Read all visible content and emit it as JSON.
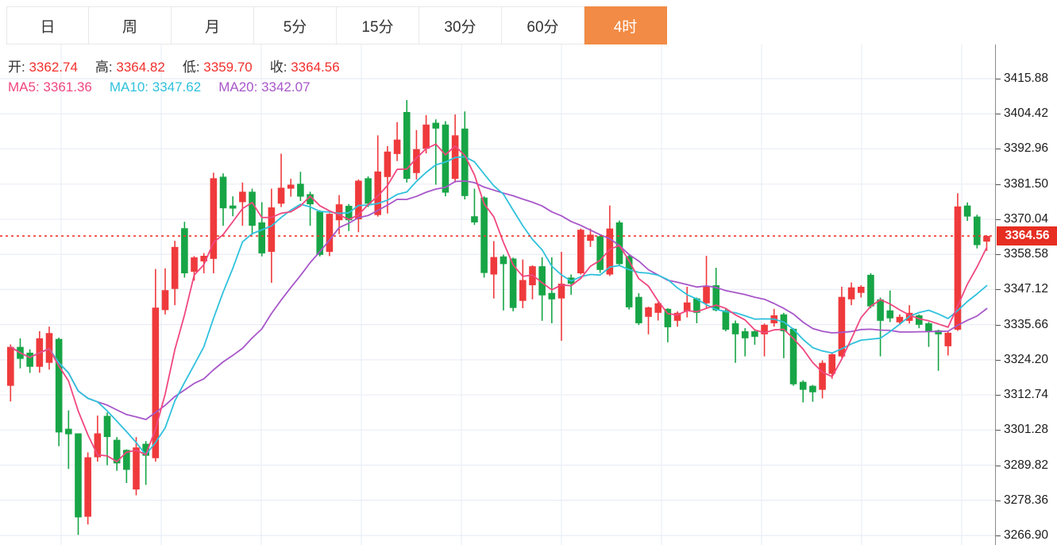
{
  "toolbar": {
    "active_bg": "#f28b45",
    "tabs": [
      {
        "id": "day",
        "label": "日",
        "active": false
      },
      {
        "id": "week",
        "label": "周",
        "active": false
      },
      {
        "id": "month",
        "label": "月",
        "active": false
      },
      {
        "id": "5min",
        "label": "5分",
        "active": false
      },
      {
        "id": "15min",
        "label": "15分",
        "active": false
      },
      {
        "id": "30min",
        "label": "30分",
        "active": false
      },
      {
        "id": "60min",
        "label": "60分",
        "active": false
      },
      {
        "id": "4hour",
        "label": "4时",
        "active": true
      }
    ]
  },
  "info": {
    "value_color": "#f2302c",
    "ohlc": [
      {
        "label": "开:",
        "value": "3362.74"
      },
      {
        "label": "高:",
        "value": "3364.82"
      },
      {
        "label": "低:",
        "value": "3359.70"
      },
      {
        "label": "收:",
        "value": "3364.56"
      }
    ],
    "ma": [
      {
        "label": "MA5:",
        "value": "3361.36",
        "color": "#f0477f"
      },
      {
        "label": "MA10:",
        "value": "3347.62",
        "color": "#2fc1dc"
      },
      {
        "label": "MA20:",
        "value": "3342.07",
        "color": "#a757c9"
      }
    ]
  },
  "axis": {
    "labels": [
      "3415.88",
      "3404.42",
      "3392.96",
      "3381.50",
      "3370.04",
      "3358.58",
      "3347.12",
      "3335.66",
      "3324.20",
      "3312.74",
      "3301.28",
      "3289.82",
      "3278.36",
      "3266.90"
    ],
    "price_badge": "3364.56",
    "badge_bg": "#e62e21"
  },
  "chart_data": {
    "type": "candlestick",
    "interval": "4时",
    "ylim": [
      3266.9,
      3415.88
    ],
    "axis_step": 11.46,
    "last_price": 3364.56,
    "ohlc_last": {
      "open": 3362.74,
      "high": 3364.82,
      "low": 3359.7,
      "close": 3364.56
    },
    "ma_values": {
      "MA5": 3361.36,
      "MA10": 3347.62,
      "MA20": 3342.07
    },
    "colors": {
      "up": "#ef3a3c",
      "down": "#17a546",
      "ma5": "#f0477f",
      "ma10": "#2fc1dc",
      "ma20": "#a757c9",
      "grid": "#e9eef6",
      "current_line": "#f0352b"
    },
    "candles": [
      [
        3315.7,
        3329.2,
        3310.6,
        3328.4
      ],
      [
        3328.4,
        3331.2,
        3321.4,
        3324.5
      ],
      [
        3326.5,
        3327.6,
        3319.9,
        3321.9
      ],
      [
        3321.9,
        3333.5,
        3320.0,
        3331.2
      ],
      [
        3323.2,
        3335.0,
        3321.0,
        3332.9
      ],
      [
        3331.0,
        3331.4,
        3296.0,
        3300.5
      ],
      [
        3301.7,
        3307.7,
        3288.6,
        3299.9
      ],
      [
        3300.2,
        3300.2,
        3267.1,
        3272.8
      ],
      [
        3273.0,
        3294.0,
        3270.5,
        3292.4
      ],
      [
        3292.4,
        3306.0,
        3291.0,
        3300.2
      ],
      [
        3305.9,
        3307.0,
        3289.8,
        3299.0
      ],
      [
        3298.1,
        3299.0,
        3288.0,
        3290.4
      ],
      [
        3294.8,
        3295.0,
        3284.0,
        3288.3
      ],
      [
        3281.9,
        3299.0,
        3280.0,
        3295.6
      ],
      [
        3296.8,
        3297.7,
        3283.4,
        3292.9
      ],
      [
        3292.1,
        3353.8,
        3291.0,
        3341.2
      ],
      [
        3340.4,
        3354.0,
        3339.0,
        3346.9
      ],
      [
        3347.3,
        3363.0,
        3342.0,
        3361.0
      ],
      [
        3367.1,
        3369.2,
        3351.0,
        3352.4
      ],
      [
        3352.9,
        3358.0,
        3350.0,
        3357.6
      ],
      [
        3356.3,
        3359.0,
        3352.4,
        3358.1
      ],
      [
        3357.1,
        3385.2,
        3352.4,
        3383.4
      ],
      [
        3383.9,
        3385.0,
        3367.9,
        3373.6
      ],
      [
        3374.5,
        3377.5,
        3371.0,
        3373.5
      ],
      [
        3375.6,
        3382.0,
        3367.9,
        3379.0
      ],
      [
        3379.0,
        3380.0,
        3365.0,
        3367.9
      ],
      [
        3369.0,
        3375.6,
        3357.9,
        3358.9
      ],
      [
        3359.4,
        3380.0,
        3349.3,
        3373.9
      ],
      [
        3375.1,
        3391.4,
        3374.0,
        3380.3
      ],
      [
        3380.0,
        3383.2,
        3377.4,
        3381.3
      ],
      [
        3381.6,
        3385.5,
        3376.0,
        3377.4
      ],
      [
        3378.2,
        3379.0,
        3367.9,
        3374.9
      ],
      [
        3372.6,
        3373.0,
        3357.9,
        3358.4
      ],
      [
        3359.4,
        3372.0,
        3358.0,
        3371.8
      ],
      [
        3369.7,
        3377.9,
        3365.1,
        3374.9
      ],
      [
        3374.4,
        3375.0,
        3366.2,
        3369.7
      ],
      [
        3370.0,
        3383.0,
        3365.8,
        3382.6
      ],
      [
        3383.4,
        3384.0,
        3374.0,
        3375.1
      ],
      [
        3371.4,
        3397.4,
        3370.9,
        3385.6
      ],
      [
        3383.8,
        3393.9,
        3371.9,
        3392.1
      ],
      [
        3391.3,
        3401.7,
        3389.0,
        3396.0
      ],
      [
        3405.0,
        3408.9,
        3382.0,
        3383.2
      ],
      [
        3385.1,
        3399.1,
        3383.0,
        3392.9
      ],
      [
        3393.0,
        3404.0,
        3391.5,
        3400.9
      ],
      [
        3401.5,
        3402.6,
        3381.3,
        3399.6
      ],
      [
        3400.9,
        3402.0,
        3377.5,
        3378.7
      ],
      [
        3383.2,
        3404.2,
        3382.0,
        3397.4
      ],
      [
        3399.6,
        3405.2,
        3376.5,
        3377.6
      ],
      [
        3371.0,
        3380.0,
        3368.2,
        3369.0
      ],
      [
        3377.1,
        3377.5,
        3351.0,
        3352.5
      ],
      [
        3352.0,
        3362.9,
        3344.2,
        3357.7
      ],
      [
        3357.9,
        3358.5,
        3340.3,
        3355.4
      ],
      [
        3357.2,
        3357.5,
        3340.0,
        3341.1
      ],
      [
        3343.4,
        3356.9,
        3341.0,
        3350.2
      ],
      [
        3348.5,
        3355.0,
        3343.9,
        3354.7
      ],
      [
        3354.7,
        3357.6,
        3336.9,
        3345.2
      ],
      [
        3346.0,
        3357.6,
        3336.1,
        3343.9
      ],
      [
        3344.2,
        3359.4,
        3330.4,
        3349.0
      ],
      [
        3351.0,
        3352.0,
        3345.4,
        3349.0
      ],
      [
        3352.4,
        3367.0,
        3352.0,
        3366.6
      ],
      [
        3363.0,
        3367.0,
        3361.0,
        3365.0
      ],
      [
        3364.5,
        3365.0,
        3352.5,
        3353.5
      ],
      [
        3352.0,
        3374.5,
        3351.5,
        3367.0
      ],
      [
        3369.0,
        3369.6,
        3355.0,
        3355.4
      ],
      [
        3358.0,
        3358.5,
        3340.6,
        3341.3
      ],
      [
        3344.7,
        3345.9,
        3335.5,
        3336.1
      ],
      [
        3338.2,
        3341.5,
        3332.5,
        3341.3
      ],
      [
        3339.5,
        3343.0,
        3337.0,
        3342.6
      ],
      [
        3340.8,
        3341.0,
        3329.9,
        3334.8
      ],
      [
        3336.9,
        3340.0,
        3335.0,
        3339.5
      ],
      [
        3340.0,
        3348.0,
        3338.0,
        3342.9
      ],
      [
        3344.2,
        3344.5,
        3336.1,
        3339.5
      ],
      [
        3342.6,
        3358.1,
        3341.0,
        3348.0
      ],
      [
        3348.5,
        3354.2,
        3340.0,
        3340.3
      ],
      [
        3340.3,
        3341.0,
        3333.5,
        3334.0
      ],
      [
        3336.1,
        3337.0,
        3323.2,
        3332.5
      ],
      [
        3333.5,
        3334.5,
        3325.3,
        3331.2
      ],
      [
        3333.5,
        3334.0,
        3329.1,
        3331.7
      ],
      [
        3332.5,
        3336.0,
        3325.3,
        3335.6
      ],
      [
        3336.1,
        3340.8,
        3335.0,
        3338.7
      ],
      [
        3339.0,
        3339.5,
        3324.7,
        3333.5
      ],
      [
        3334.3,
        3334.5,
        3315.7,
        3316.2
      ],
      [
        3317.0,
        3317.5,
        3310.3,
        3314.4
      ],
      [
        3315.7,
        3316.0,
        3310.5,
        3313.6
      ],
      [
        3314.4,
        3324.0,
        3311.6,
        3323.2
      ],
      [
        3319.6,
        3326.5,
        3318.0,
        3326.0
      ],
      [
        3325.3,
        3348.0,
        3324.9,
        3344.7
      ],
      [
        3343.9,
        3349.4,
        3342.0,
        3347.8
      ],
      [
        3346.0,
        3348.5,
        3344.5,
        3348.0
      ],
      [
        3351.9,
        3352.4,
        3341.0,
        3341.6
      ],
      [
        3343.9,
        3344.5,
        3325.3,
        3336.9
      ],
      [
        3340.3,
        3346.8,
        3336.5,
        3337.7
      ],
      [
        3336.4,
        3339.0,
        3335.5,
        3338.2
      ],
      [
        3336.9,
        3342.0,
        3336.0,
        3339.5
      ],
      [
        3338.7,
        3339.0,
        3334.5,
        3335.6
      ],
      [
        3336.1,
        3336.5,
        3328.4,
        3333.5
      ],
      [
        3333.8,
        3334.0,
        3320.6,
        3332.5
      ],
      [
        3328.6,
        3333.5,
        3325.6,
        3333.0
      ],
      [
        3334.0,
        3378.5,
        3333.6,
        3374.2
      ],
      [
        3374.5,
        3375.5,
        3369.5,
        3370.9
      ],
      [
        3370.9,
        3371.5,
        3360.5,
        3361.6
      ],
      [
        3362.74,
        3364.82,
        3359.7,
        3364.56
      ]
    ]
  }
}
